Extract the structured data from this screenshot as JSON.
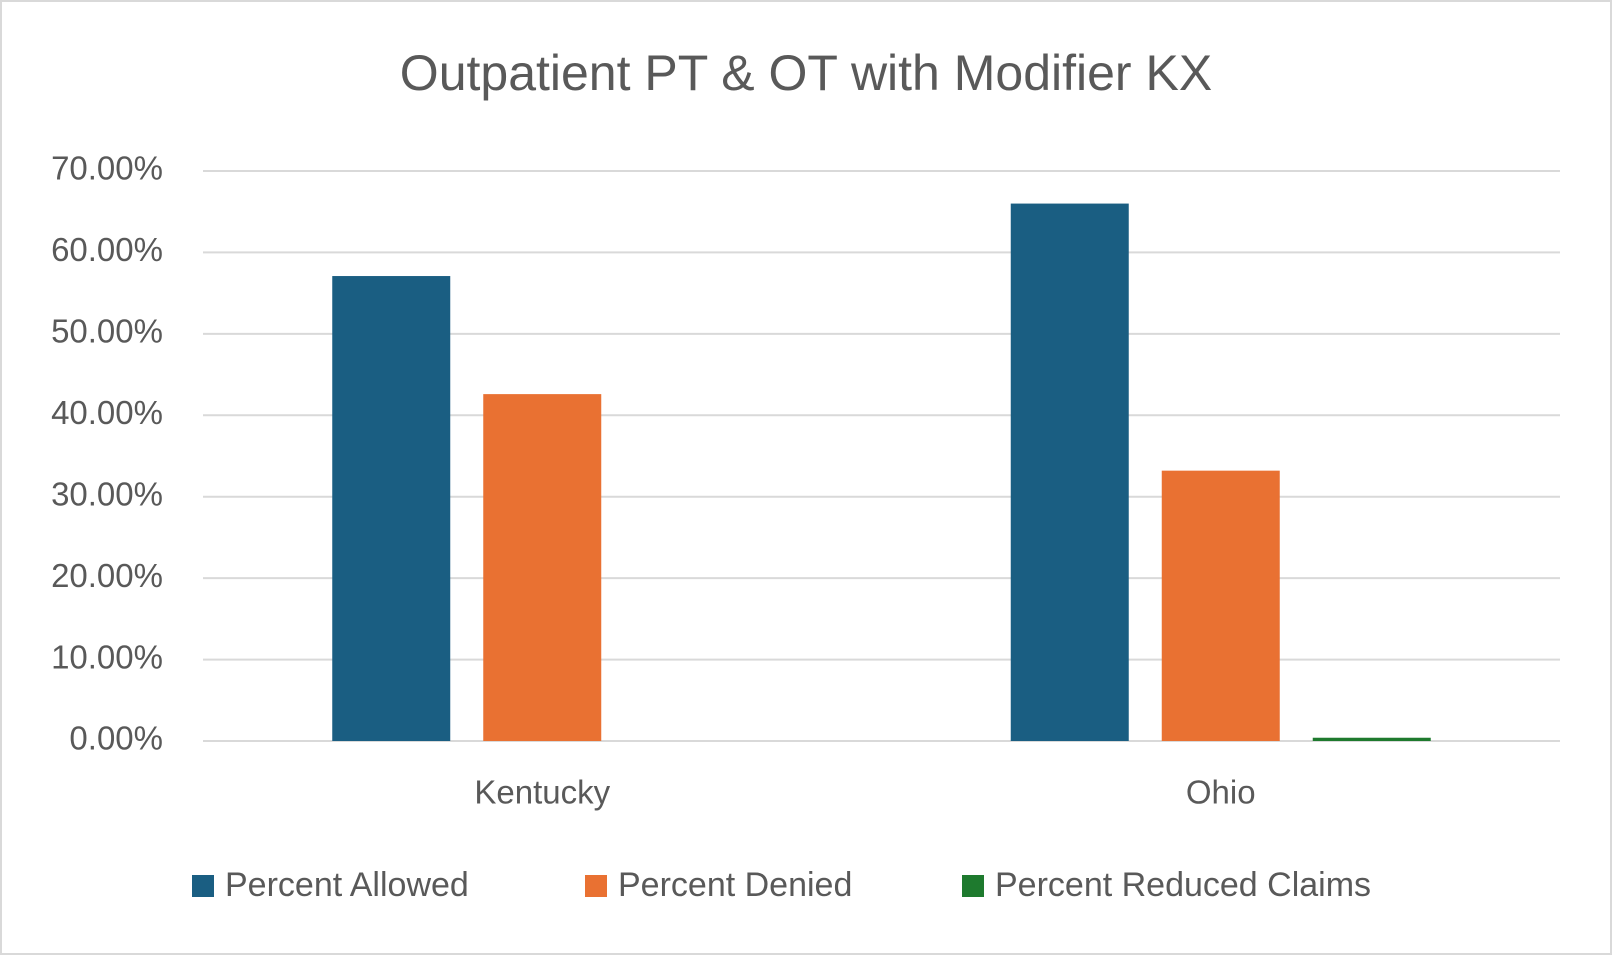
{
  "chart_data": {
    "type": "bar",
    "title": "Outpatient PT & OT with Modifier KX",
    "categories": [
      "Kentucky",
      "Ohio"
    ],
    "series": [
      {
        "name": "Percent Allowed",
        "color": "#1a5e82",
        "values": [
          57.1,
          66.0
        ]
      },
      {
        "name": "Percent Denied",
        "color": "#e97132",
        "values": [
          42.6,
          33.2
        ]
      },
      {
        "name": "Percent Reduced Claims",
        "color": "#1e7a2e",
        "values": [
          0,
          0.4
        ]
      }
    ],
    "ylim": [
      0,
      70
    ],
    "yticks": [
      {
        "value": 0,
        "label": "0.00%"
      },
      {
        "value": 10,
        "label": "10.00%"
      },
      {
        "value": 20,
        "label": "20.00%"
      },
      {
        "value": 30,
        "label": "30.00%"
      },
      {
        "value": 40,
        "label": "40.00%"
      },
      {
        "value": 50,
        "label": "50.00%"
      },
      {
        "value": 60,
        "label": "60.00%"
      },
      {
        "value": 70,
        "label": "70.00%"
      }
    ],
    "grid": true,
    "legend": "bottom"
  }
}
